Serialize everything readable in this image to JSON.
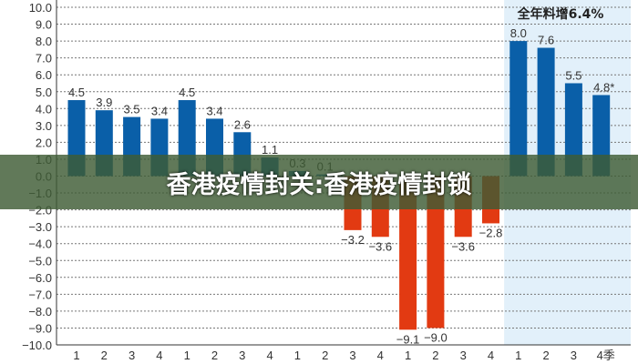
{
  "chart_data": {
    "type": "bar",
    "categories": [
      "1",
      "2",
      "3",
      "4",
      "1",
      "2",
      "3",
      "4",
      "1",
      "2",
      "3",
      "4",
      "1",
      "2",
      "3",
      "4",
      "1",
      "2",
      "3",
      "4季"
    ],
    "values": [
      4.5,
      3.9,
      3.5,
      3.4,
      4.5,
      3.4,
      2.6,
      1.1,
      0.3,
      0.1,
      -3.2,
      -3.6,
      -9.1,
      -9.0,
      -3.6,
      -2.8,
      8.0,
      7.6,
      5.5,
      4.8
    ],
    "value_labels": [
      "4.5",
      "3.9",
      "3.5",
      "3.4",
      "4.5",
      "3.4",
      "2.6",
      "1.1",
      "0.3",
      "0.1",
      "−3.2",
      "−3.6",
      "−9.1",
      "−9.0",
      "−3.6",
      "−2.8",
      "8.0",
      "7.6",
      "5.5",
      "4.8*"
    ],
    "ylim": [
      -10,
      10
    ],
    "yticks": [
      "10.0",
      "9.0",
      "8.0",
      "7.0",
      "6.0",
      "5.0",
      "4.0",
      "3.0",
      "2.0",
      "1.0",
      "0.0",
      "−1.0",
      "−2.0",
      "−3.0",
      "−4.0",
      "−5.0",
      "−6.0",
      "−7.0",
      "−8.0",
      "−9.0",
      "−10.0"
    ],
    "grid": true,
    "annotation": "全年料增6.4%",
    "highlight_last_n": 4,
    "colors": {
      "positive": "#0a5fa8",
      "negative": "#e23a12",
      "highlight_bg": "#e2f0fa",
      "grid": "#777777"
    }
  },
  "banner": {
    "text": "香港疫情封关:香港疫情封锁"
  }
}
